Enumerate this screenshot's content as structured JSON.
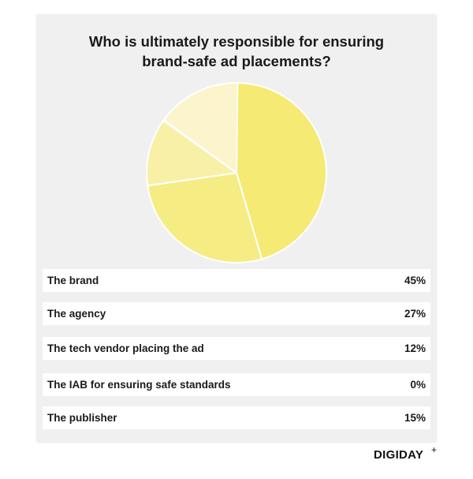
{
  "chart_data": {
    "type": "pie",
    "title_lines": [
      "Who is ultimately responsible for ensuring",
      "brand-safe ad placements?"
    ],
    "categories": [
      "The brand",
      "The agency",
      "The tech vendor placing the ad",
      "The IAB for ensuring safe standards",
      "The publisher"
    ],
    "values": [
      45,
      27,
      12,
      0,
      15
    ],
    "value_labels": [
      "45%",
      "27%",
      "12%",
      "0%",
      "15%"
    ],
    "colors": [
      "#f5ea73",
      "#f6ec84",
      "#f8f0a7",
      "#f9f2b4",
      "#fbf4cc"
    ],
    "start_angle_deg": 0,
    "direction": "clockwise"
  },
  "branding": {
    "logo_text": "DIGIDAY",
    "logo_suffix": "+"
  }
}
